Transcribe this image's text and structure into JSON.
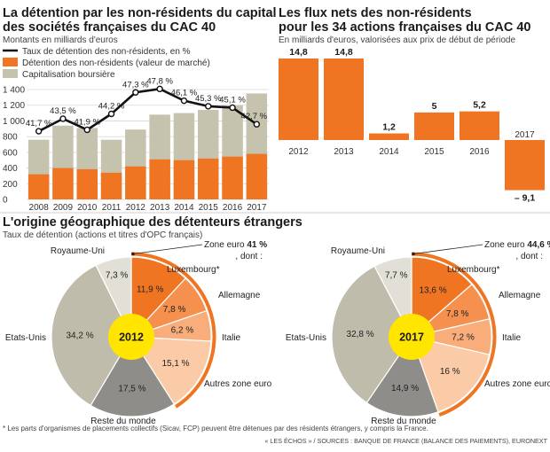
{
  "colors": {
    "orange": "#f07522",
    "gray_bar": "#c5c2ae",
    "line": "#111111",
    "uk": "#e2e0d6",
    "usa": "#bfbcab",
    "rest": "#8e8d89",
    "lux": "#f07522",
    "de": "#f5904e",
    "it": "#f8ad7a",
    "other_ez": "#fbcba8",
    "center": "#ffe500"
  },
  "chart_data": [
    {
      "type": "bar",
      "title": "La détention par les non-résidents du capital des sociétés françaises du CAC 40",
      "title_lines": [
        "La détention par les non-résidents du capital",
        "des sociétés françaises du CAC 40"
      ],
      "subtitle": "Montants en milliards d'euros",
      "categories": [
        "2008",
        "2009",
        "2010",
        "2011",
        "2012",
        "2013",
        "2014",
        "2015",
        "2016",
        "2017"
      ],
      "yticks": [
        "0",
        "200",
        "400",
        "600",
        "800",
        "1 000",
        "1 200",
        "1 400"
      ],
      "ylim": [
        0,
        1400
      ],
      "grid": true,
      "legend_position": "top-left",
      "series": [
        {
          "name": "Capitalisation boursière",
          "kind": "bar",
          "values": [
            760,
            940,
            910,
            760,
            890,
            1080,
            1100,
            1140,
            1200,
            1350
          ]
        },
        {
          "name": "Détention des non-résidents (valeur de marché)",
          "kind": "bar",
          "values": [
            320,
            400,
            385,
            340,
            420,
            510,
            500,
            520,
            545,
            580
          ]
        },
        {
          "name": "Taux de détention des non-résidents, en %",
          "kind": "line",
          "values": [
            41.7,
            43.5,
            41.9,
            44.2,
            47.3,
            47.8,
            46.1,
            45.3,
            45.1,
            42.7
          ],
          "labels": [
            "41,7 %",
            "43,5 %",
            "41,9 %",
            "44,2 %",
            "47,3 %",
            "47,8 %",
            "46,1 %",
            "45,3 %",
            "45,1 %",
            "42,7 %"
          ]
        }
      ]
    },
    {
      "type": "bar",
      "title": "Les flux nets des non-résidents pour les 34 actions françaises du CAC 40",
      "title_lines": [
        "Les flux nets des non-résidents",
        "pour les 34 actions françaises du CAC 40"
      ],
      "subtitle": "En milliards d'euros, valorisées aux prix de début de période",
      "categories": [
        "2012",
        "2013",
        "2014",
        "2015",
        "2016",
        "2017"
      ],
      "values": [
        14.8,
        14.8,
        1.2,
        5,
        5.2,
        -9.1
      ],
      "labels": [
        "14,8",
        "14,8",
        "1,2",
        "5",
        "5,2",
        "– 9,1"
      ],
      "ylim": [
        -9.1,
        14.8
      ]
    },
    {
      "type": "pie",
      "title": "L'origine géographique des détenteurs étrangers",
      "subtitle": "Taux de détention (actions et titres d'OPC français)",
      "center_label": "2012",
      "eurozone": {
        "label": "Zone euro",
        "value_label": "41 %",
        "suffix": ", dont :",
        "value": 41
      },
      "slices": [
        {
          "name": "Luxembourg*",
          "value": 11.9,
          "label": "11,9 %"
        },
        {
          "name": "Allemagne",
          "value": 7.8,
          "label": "7,8 %"
        },
        {
          "name": "Italie",
          "value": 6.2,
          "label": "6,2 %"
        },
        {
          "name": "Autres zone euro",
          "value": 15.1,
          "label": "15,1 %"
        },
        {
          "name": "Reste du monde",
          "value": 17.5,
          "label": "17,5 %"
        },
        {
          "name": "Etats-Unis",
          "value": 34.2,
          "label": "34,2 %"
        },
        {
          "name": "Royaume-Uni",
          "value": 7.3,
          "label": "7,3 %"
        }
      ]
    },
    {
      "type": "pie",
      "center_label": "2017",
      "eurozone": {
        "label": "Zone euro",
        "value_label": "44,6 %",
        "suffix": ", dont :",
        "value": 44.6
      },
      "slices": [
        {
          "name": "Luxembourg*",
          "value": 13.6,
          "label": "13,6 %"
        },
        {
          "name": "Allemagne",
          "value": 7.8,
          "label": "7,8 %"
        },
        {
          "name": "Italie",
          "value": 7.2,
          "label": "7,2 %"
        },
        {
          "name": "Autres zone euro",
          "value": 16,
          "label": "16 %"
        },
        {
          "name": "Reste du monde",
          "value": 14.9,
          "label": "14,9 %"
        },
        {
          "name": "Etats-Unis",
          "value": 32.8,
          "label": "32,8 %"
        },
        {
          "name": "Royaume-Uni",
          "value": 7.7,
          "label": "7,7 %"
        }
      ]
    }
  ],
  "footnote": "* Les parts d'organismes de placements collectifs (Sicav, FCP) peuvent être détenues par des résidents étrangers, y compris la France.",
  "source": "« LES ÉCHOS » / SOURCES : BANQUE DE FRANCE (BALANCE DES PAIEMENTS), EURONEXT"
}
